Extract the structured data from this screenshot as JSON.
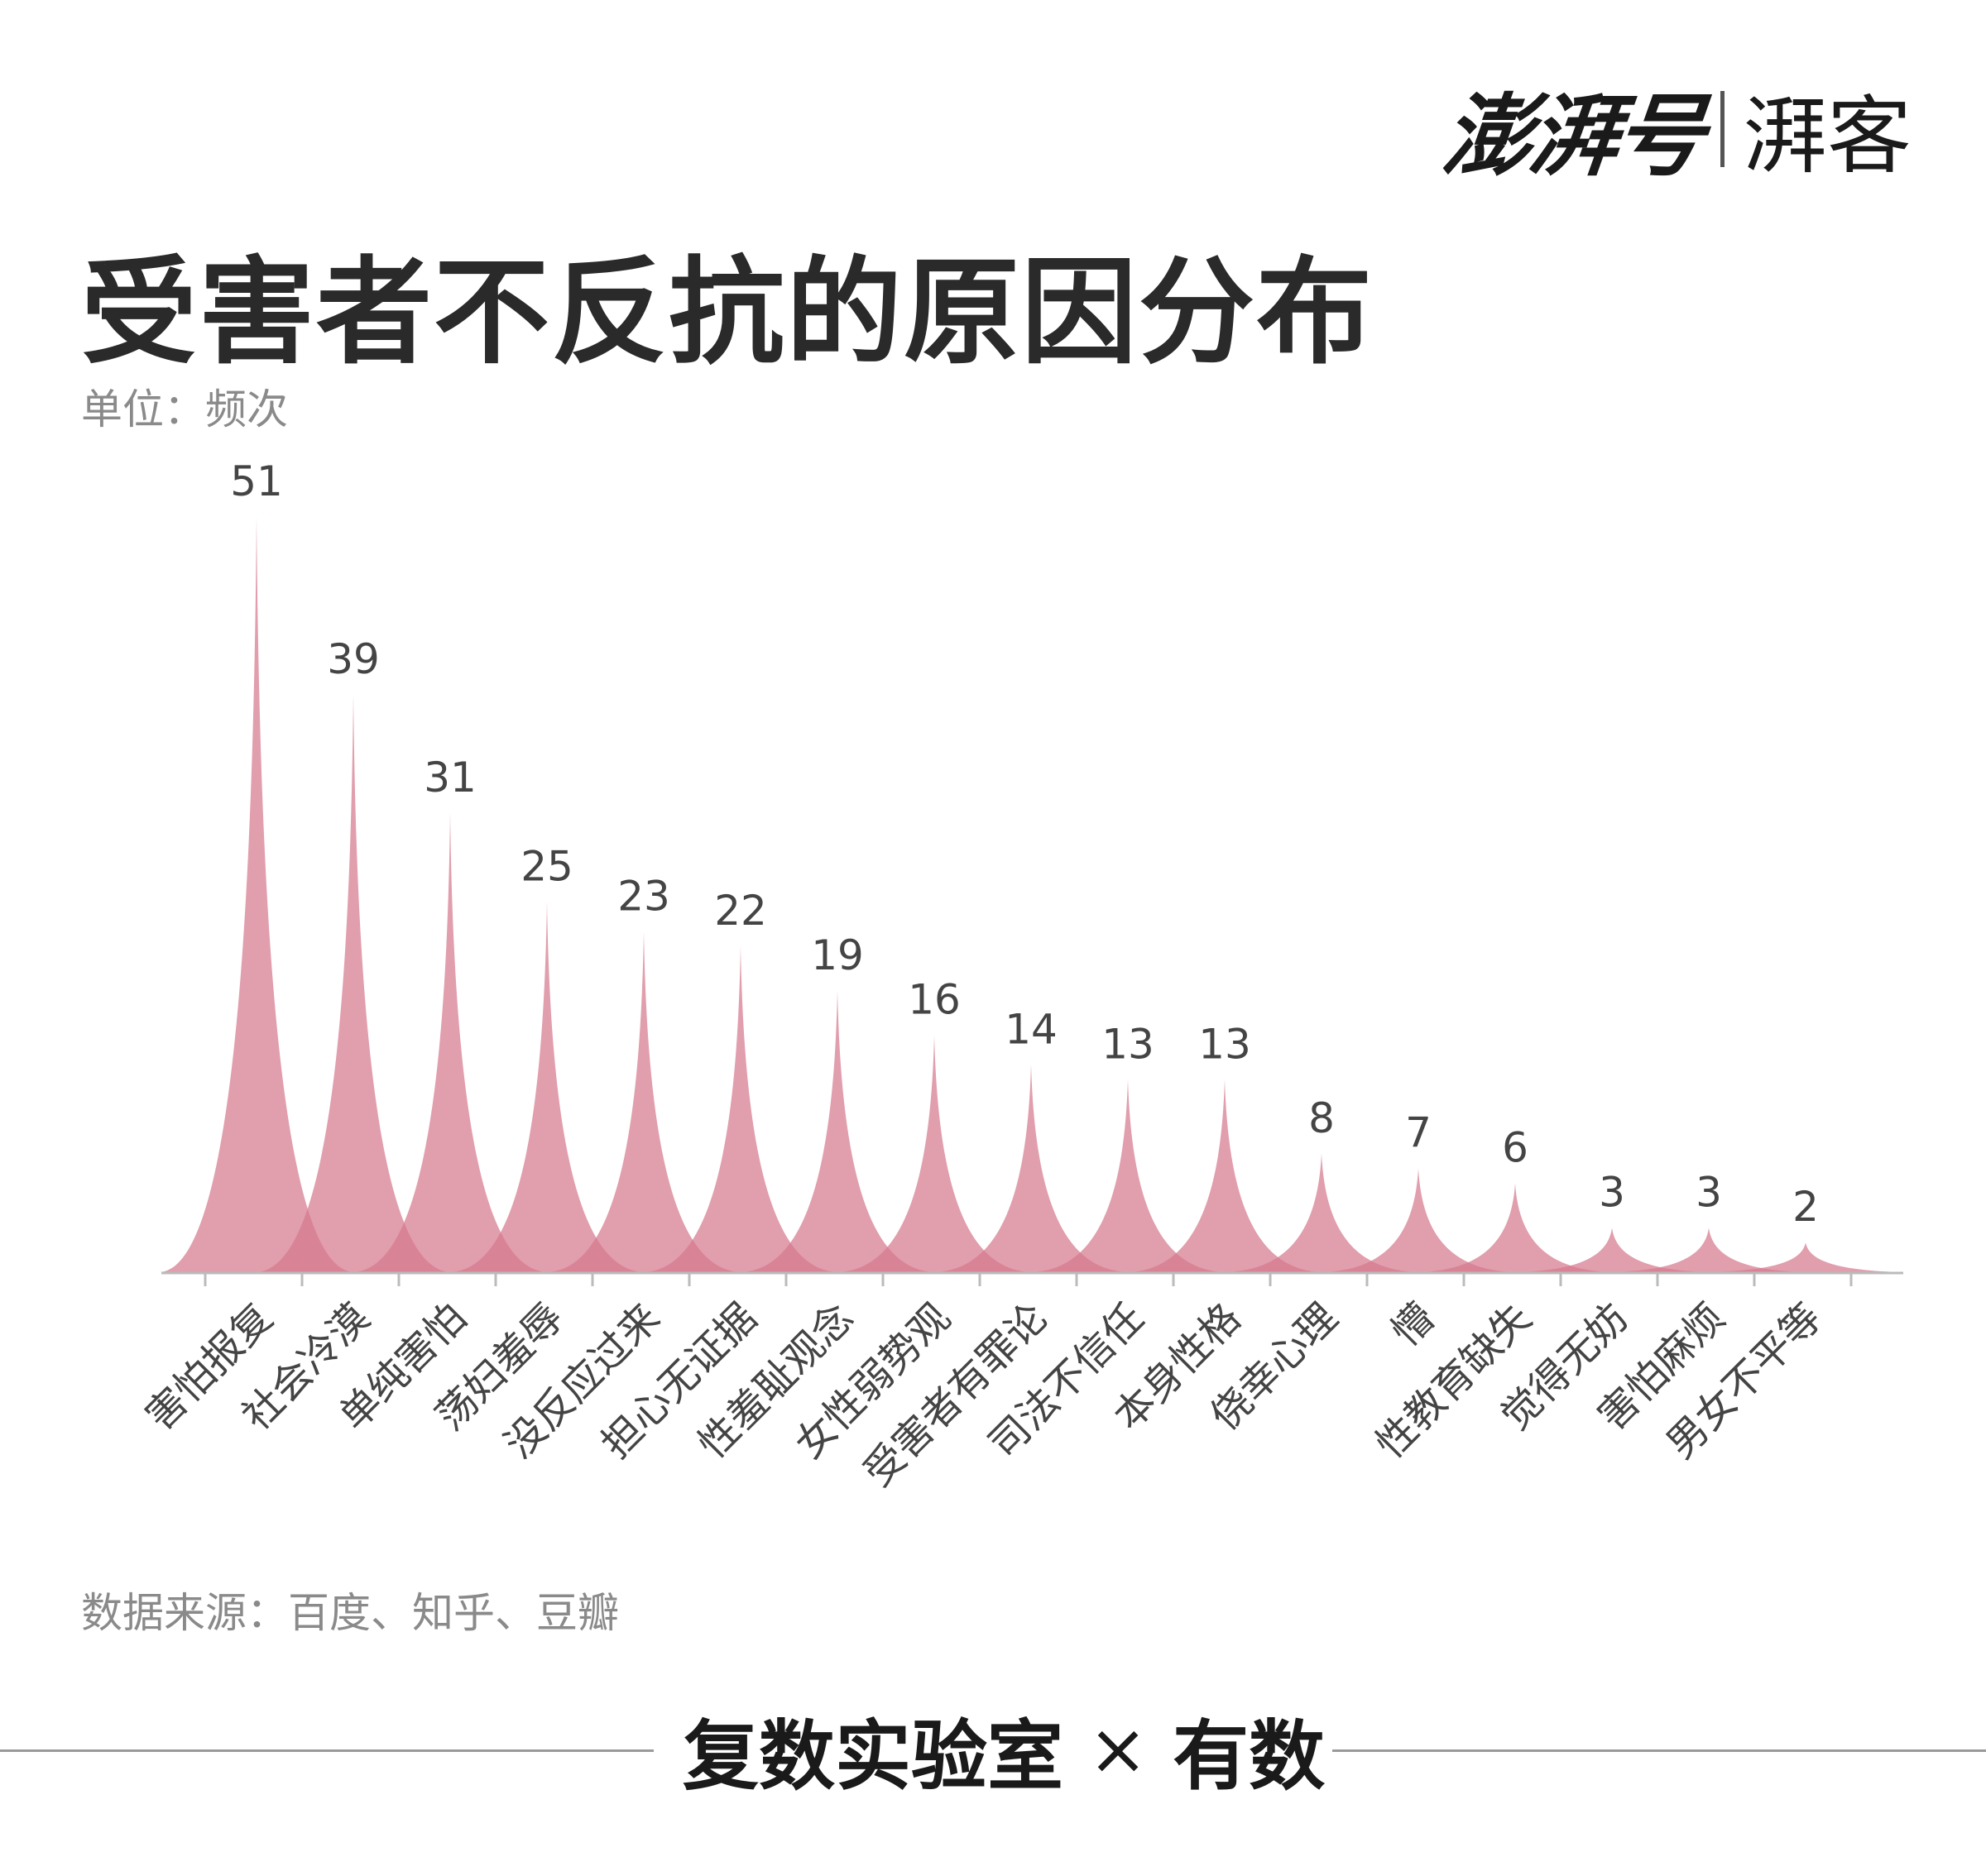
{
  "header": {
    "logo": "澎湃号",
    "sub_logo": "湃客"
  },
  "title": "受害者不反抗的原因分布",
  "unit": "单位：频次",
  "source": "数据来源：百度、知乎、豆瓣",
  "footer": {
    "left": "复数实验室",
    "cross": "×",
    "right": "有数"
  },
  "colors": {
    "fill": "#d5788e",
    "axis": "#bbbbbb",
    "label": "#444444"
  },
  "chart_data": {
    "type": "area",
    "categories": [
      "害怕报复",
      "社会冷漠",
      "单纯害怕",
      "荡妇羞辱",
      "没反应过来",
      "担心无证据",
      "性羞耻观念",
      "女性弱势观",
      "受害者有罪论",
      "司法不信任",
      "本身性格",
      "侥幸心理",
      "懵",
      "性教育缺失",
      "觉得无妨",
      "害怕麻烦",
      "男女不平等"
    ],
    "values": [
      51,
      39,
      31,
      25,
      23,
      22,
      19,
      16,
      14,
      13,
      13,
      8,
      7,
      6,
      3,
      3,
      2
    ],
    "ylim": [
      0,
      51
    ],
    "grid": false,
    "legend": "none"
  }
}
